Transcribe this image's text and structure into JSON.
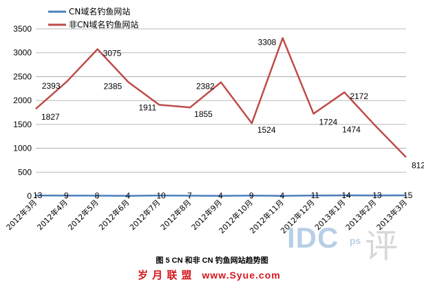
{
  "chart_data": {
    "type": "line",
    "categories": [
      "2012年3月",
      "2012年4月",
      "2012年5月",
      "2012年6月",
      "2012年7月",
      "2012年8月",
      "2012年9月",
      "2012年10月",
      "2012年11月",
      "2012年12月",
      "2013年1月",
      "2013年2月",
      "2013年3月"
    ],
    "series": [
      {
        "name": "CN域名钓鱼网站",
        "color": "#4a7ebb",
        "values": [
          13,
          9,
          8,
          4,
          10,
          7,
          4,
          9,
          4,
          11,
          14,
          13,
          15
        ]
      },
      {
        "name": "非CN域名钓鱼网站",
        "color": "#be4b48",
        "values": [
          1827,
          2393,
          3075,
          2385,
          1911,
          1855,
          2382,
          1524,
          3308,
          1724,
          2172,
          1474,
          812
        ]
      }
    ],
    "yticks": [
      0,
      500,
      1000,
      1500,
      2000,
      2500,
      3000,
      3500
    ],
    "ylim": [
      0,
      3500
    ],
    "grid": true,
    "legend_position": "top-left",
    "caption": "图 5 CN 和非 CN 钓鱼网站趋势图"
  },
  "footer": {
    "brand": "岁 月 联 盟",
    "url": "www.Syue.com"
  },
  "watermark": {
    "text": "IDC",
    "sub": "ps",
    "char": "评"
  }
}
